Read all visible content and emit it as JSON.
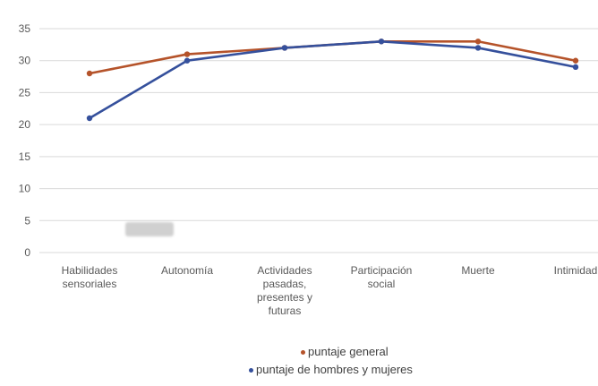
{
  "colors": {
    "general": "#b5532a",
    "hombres_mujeres": "#35509c",
    "grid": "#d9d9d9",
    "axis_text": "#595959"
  },
  "chart_data": {
    "type": "line",
    "categories": [
      [
        "Habilidades",
        "sensoriales"
      ],
      [
        "Autonomía"
      ],
      [
        "Actividades",
        "pasadas,",
        "presentes y",
        "futuras"
      ],
      [
        "Participación",
        "social"
      ],
      [
        "Muerte"
      ],
      [
        "Intimidad"
      ]
    ],
    "series": [
      {
        "name": "puntaje general",
        "values": [
          28,
          31,
          32,
          33,
          33,
          30
        ]
      },
      {
        "name": "puntaje de hombres y mujeres",
        "values": [
          21,
          30,
          32,
          33,
          32,
          29
        ]
      }
    ],
    "ylim": [
      0,
      35
    ],
    "yticks": [
      0,
      5,
      10,
      15,
      20,
      25,
      30,
      35
    ],
    "grid": true,
    "legend_position": "bottom"
  }
}
